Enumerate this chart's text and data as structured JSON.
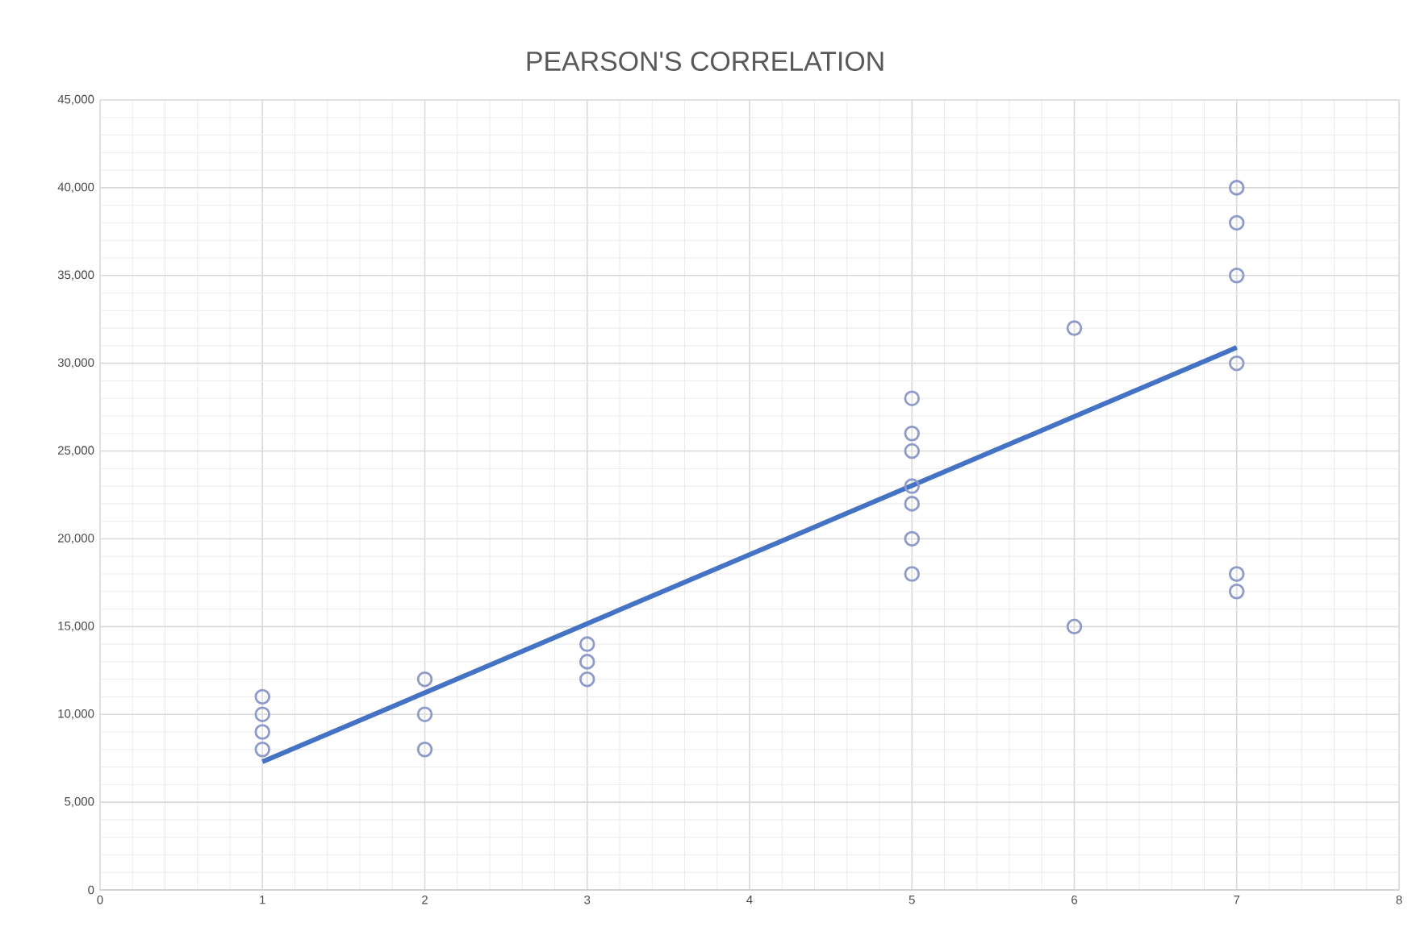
{
  "chart_data": {
    "type": "scatter",
    "title": "PEARSON'S CORRELATION",
    "xlim": [
      0,
      8
    ],
    "xticks": [
      0,
      1,
      2,
      3,
      4,
      5,
      6,
      7,
      8
    ],
    "ylim": [
      0,
      45000
    ],
    "yticks": [
      {
        "value": 0,
        "label": "0"
      },
      {
        "value": 5000,
        "label": "5,000"
      },
      {
        "value": 10000,
        "label": "10,000"
      },
      {
        "value": 15000,
        "label": "15,000"
      },
      {
        "value": 20000,
        "label": "20,000"
      },
      {
        "value": 25000,
        "label": "25,000"
      },
      {
        "value": 30000,
        "label": "30,000"
      },
      {
        "value": 35000,
        "label": "35,000"
      },
      {
        "value": 40000,
        "label": "40,000"
      },
      {
        "value": 45000,
        "label": "45,000"
      }
    ],
    "grid": true,
    "series": [
      {
        "color": "#8e9ac8",
        "marker": "circle",
        "x": [
          1,
          1,
          1,
          1,
          2,
          2,
          2,
          3,
          3,
          3,
          5,
          5,
          5,
          5,
          5,
          5,
          5,
          6,
          6,
          7,
          7,
          7,
          7,
          7,
          7
        ],
        "values": [
          11000,
          10000,
          9000,
          8000,
          12000,
          10000,
          8000,
          14000,
          13000,
          12000,
          28000,
          26000,
          25000,
          23000,
          22000,
          20000,
          18000,
          32000,
          15000,
          40000,
          38000,
          35000,
          30000,
          18000,
          17000
        ]
      },
      {
        "type": "line",
        "color": "#4472c4",
        "marker": "none",
        "x": [
          1,
          7
        ],
        "values": [
          7300,
          30900
        ]
      }
    ]
  }
}
